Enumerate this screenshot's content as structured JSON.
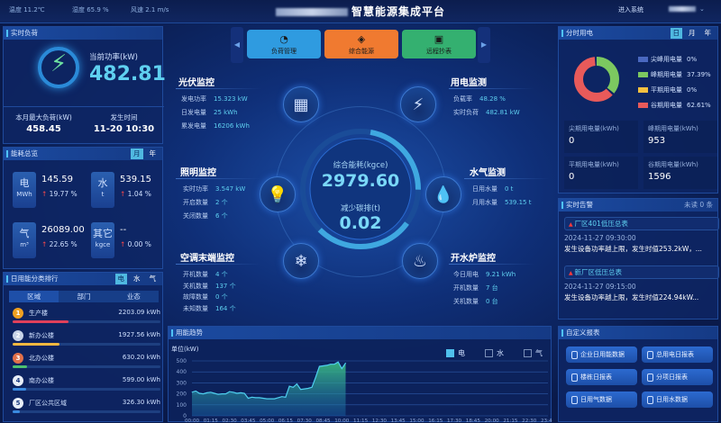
{
  "header": {
    "temperature": "温度 11.2℃",
    "humidity": "湿度 65.9 %",
    "wind": "风速 2.1 m/s",
    "title": "智慧能源集成平台",
    "enter_system": "进入系统",
    "user_menu_arrow": "⌄"
  },
  "realtime_load": {
    "title": "实时负荷",
    "power_label": "当前功率(kW)",
    "power_value": "482.81",
    "max_label": "本月最大负荷(kW)",
    "max_value": "458.45",
    "time_label": "发生时间",
    "time_value": "11-20 10:30"
  },
  "energy_overview": {
    "title": "能耗总览",
    "tabs": [
      "月",
      "年"
    ],
    "active_tab": "月",
    "items": [
      {
        "name": "电",
        "unit": "MWh",
        "value": "145.59",
        "change": "19.77 %"
      },
      {
        "name": "水",
        "unit": "t",
        "value": "539.15",
        "change": "1.04 %"
      },
      {
        "name": "气",
        "unit": "m³",
        "value": "26089.00",
        "change": "22.65 %"
      },
      {
        "name": "其它",
        "unit": "kgce",
        "value": "--",
        "change": "0.00 %"
      }
    ]
  },
  "ranking": {
    "title": "日用能分类排行",
    "tabs": [
      "电",
      "水",
      "气"
    ],
    "active_tab": "电",
    "subtabs": [
      "区域",
      "部门",
      "业态"
    ],
    "active_subtab": "区域",
    "items": [
      {
        "rank": "1",
        "name": "生产楼",
        "value": "2203.09 kWh",
        "pct": 0.38,
        "color": "#e0405a",
        "badge": "#f0a020"
      },
      {
        "rank": "2",
        "name": "新办公楼",
        "value": "1927.56 kWh",
        "pct": 0.32,
        "color": "#f5b840",
        "badge": "#c8d4e8"
      },
      {
        "rank": "3",
        "name": "北办公楼",
        "value": "630.20 kWh",
        "pct": 0.1,
        "color": "#4cc070",
        "badge": "#e0704a"
      },
      {
        "rank": "4",
        "name": "南办公楼",
        "value": "599.00 kWh",
        "pct": 0.09,
        "color": "#3a8ae0",
        "badge": "#e8eef8"
      },
      {
        "rank": "5",
        "name": "厂区公共区域",
        "value": "326.30 kWh",
        "pct": 0.05,
        "color": "#3a8ae0",
        "badge": "#e8eef8"
      }
    ]
  },
  "nav": {
    "prev": "◀",
    "next": "▶",
    "buttons": [
      {
        "label": "负荷管理",
        "icon": "gauge-icon",
        "color": "#2f9be0"
      },
      {
        "label": "综合能源",
        "icon": "layers-icon",
        "color": "#f07a30"
      },
      {
        "label": "远程抄表",
        "icon": "meter-icon",
        "color": "#34b070"
      }
    ]
  },
  "pv": {
    "title": "光伏监控",
    "rows": [
      {
        "k": "发电功率",
        "v": "15.323 kW"
      },
      {
        "k": "日发电量",
        "v": "25 kWh"
      },
      {
        "k": "累发电量",
        "v": "16206 kWh"
      }
    ]
  },
  "power_monitor": {
    "title": "用电监测",
    "rows": [
      {
        "k": "负载率",
        "v": "48.28 %"
      },
      {
        "k": "实时负荷",
        "v": "482.81 kW"
      }
    ]
  },
  "lighting": {
    "title": "照明监控",
    "rows": [
      {
        "k": "实时功率",
        "v": "3.547 kW"
      },
      {
        "k": "开启数量",
        "v": "2 个"
      },
      {
        "k": "关闭数量",
        "v": "6 个"
      }
    ]
  },
  "water_gas": {
    "title": "水气监测",
    "rows": [
      {
        "k": "日用水量",
        "v": "0 t"
      },
      {
        "k": "月用水量",
        "v": "539.15 t"
      }
    ]
  },
  "ac": {
    "title": "空调末端监控",
    "rows": [
      {
        "k": "开机数量",
        "v": "4 个"
      },
      {
        "k": "关机数量",
        "v": "137 个"
      },
      {
        "k": "故障数量",
        "v": "0 个"
      },
      {
        "k": "未知数量",
        "v": "164 个"
      }
    ]
  },
  "boiler": {
    "title": "开水炉监控",
    "rows": [
      {
        "k": "今日用电",
        "v": "9.21 kWh"
      },
      {
        "k": "开机数量",
        "v": "7 台"
      },
      {
        "k": "关机数量",
        "v": "0 台"
      }
    ]
  },
  "center": {
    "energy_label": "综合能耗(kgce)",
    "energy_value": "2979.60",
    "carbon_label": "减少碳排(t)",
    "carbon_value": "0.02"
  },
  "tou": {
    "title": "分时用电",
    "tabs": [
      "日",
      "月",
      "年"
    ],
    "active_tab": "日",
    "legend": [
      {
        "name": "尖峰用电量",
        "pct": "0%",
        "value": 0,
        "color": "#4a68c0"
      },
      {
        "name": "峰期用电量",
        "pct": "37.39%",
        "value": 37.39,
        "color": "#7cc860"
      },
      {
        "name": "平期用电量",
        "pct": "0%",
        "value": 0,
        "color": "#f5c040"
      },
      {
        "name": "谷期用电量",
        "pct": "62.61%",
        "value": 62.61,
        "color": "#e85a5a"
      }
    ],
    "stats": [
      {
        "k": "尖期用电量(kWh)",
        "v": "0"
      },
      {
        "k": "峰期用电量(kWh)",
        "v": "953"
      },
      {
        "k": "平期用电量(kWh)",
        "v": "0"
      },
      {
        "k": "谷期用电量(kWh)",
        "v": "1596"
      }
    ]
  },
  "alarms": {
    "title": "实时告警",
    "unread": "未读 0 条",
    "items": [
      {
        "title": "厂区401低压总表",
        "time": "2024-11-27 09:30:00",
        "msg": "发生设备功率越上限，发生时值253.2kW，..."
      },
      {
        "title": "新厂区低压总表",
        "time": "2024-11-27 09:15:00",
        "msg": "发生设备功率越上限，发生时值224.94kW..."
      }
    ]
  },
  "reports": {
    "title": "自定义报表",
    "buttons": [
      "企业日用能数据",
      "总用电日报表",
      "楼栋日报表",
      "分项日报表",
      "日用气数据",
      "日用水数据"
    ]
  },
  "trend": {
    "title": "用能趋势",
    "legend": [
      {
        "name": "电",
        "active": true
      },
      {
        "name": "水",
        "active": false
      },
      {
        "name": "气",
        "active": false
      }
    ]
  },
  "chart_data": {
    "type": "area",
    "ylabel": "单位(kW)",
    "ylim": [
      0,
      500
    ],
    "yticks": [
      0,
      100,
      200,
      300,
      400,
      500
    ],
    "xticks": [
      "00:00",
      "01:15",
      "02:30",
      "03:45",
      "05:00",
      "06:15",
      "07:30",
      "08:45",
      "10:00",
      "11:15",
      "12:30",
      "13:45",
      "15:00",
      "16:15",
      "17:30",
      "18:45",
      "20:00",
      "21:15",
      "22:30",
      "23:45"
    ],
    "series": [
      {
        "name": "电",
        "color": "#4fd0f0",
        "x": [
          "00:00",
          "00:15",
          "00:30",
          "00:45",
          "01:00",
          "01:15",
          "01:30",
          "01:45",
          "02:00",
          "02:15",
          "02:30",
          "02:45",
          "03:00",
          "03:15",
          "03:30",
          "03:45",
          "04:00",
          "04:15",
          "04:30",
          "04:45",
          "05:00",
          "05:15",
          "05:30",
          "05:45",
          "06:00",
          "06:15",
          "06:30",
          "06:45",
          "07:00",
          "07:15",
          "07:30",
          "07:45",
          "08:00",
          "08:15",
          "08:30",
          "08:45",
          "09:00",
          "09:15",
          "09:30",
          "09:45",
          "10:00",
          "10:15"
        ],
        "values": [
          215,
          225,
          205,
          200,
          210,
          215,
          205,
          195,
          200,
          200,
          220,
          215,
          205,
          210,
          205,
          160,
          170,
          165,
          165,
          160,
          155,
          155,
          155,
          165,
          175,
          170,
          270,
          260,
          290,
          240,
          245,
          250,
          260,
          350,
          450,
          455,
          460,
          470,
          470,
          490,
          430,
          480
        ]
      }
    ]
  }
}
